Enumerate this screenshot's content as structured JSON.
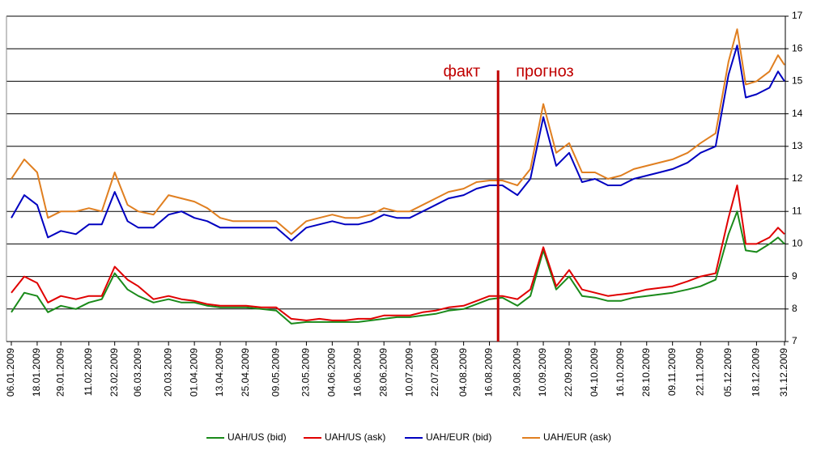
{
  "chart_data": {
    "type": "line",
    "x": [
      "06.01.2009",
      "12.01.2009",
      "18.01.2009",
      "23.01.2009",
      "29.01.2009",
      "05.02.2009",
      "11.02.2009",
      "17.02.2009",
      "23.02.2009",
      "01.03.2009",
      "06.03.2009",
      "13.03.2009",
      "20.03.2009",
      "26.03.2009",
      "01.04.2009",
      "07.04.2009",
      "13.04.2009",
      "19.04.2009",
      "25.04.2009",
      "02.05.2009",
      "09.05.2009",
      "16.05.2009",
      "23.05.2009",
      "29.05.2009",
      "04.06.2009",
      "10.06.2009",
      "16.06.2009",
      "22.06.2009",
      "28.06.2009",
      "04.07.2009",
      "10.07.2009",
      "16.07.2009",
      "22.07.2009",
      "28.07.2009",
      "04.08.2009",
      "10.08.2009",
      "16.08.2009",
      "22.08.2009",
      "29.08.2009",
      "04.09.2009",
      "10.09.2009",
      "16.09.2009",
      "22.09.2009",
      "28.09.2009",
      "04.10.2009",
      "10.10.2009",
      "16.10.2009",
      "22.10.2009",
      "28.10.2009",
      "03.11.2009",
      "09.11.2009",
      "16.11.2009",
      "22.11.2009",
      "29.11.2009",
      "05.12.2009",
      "09.12.2009",
      "13.12.2009",
      "18.12.2009",
      "24.12.2009",
      "28.12.2009",
      "31.12.2009"
    ],
    "series": [
      {
        "name": "UAH/US (bid)",
        "color": "#1a8a1a",
        "values": [
          7.9,
          8.5,
          8.4,
          7.9,
          8.1,
          8.0,
          8.2,
          8.3,
          9.1,
          8.6,
          8.4,
          8.2,
          8.3,
          8.2,
          8.2,
          8.1,
          8.05,
          8.05,
          8.05,
          8.0,
          7.95,
          7.55,
          7.6,
          7.6,
          7.6,
          7.6,
          7.6,
          7.65,
          7.7,
          7.75,
          7.75,
          7.8,
          7.85,
          7.95,
          8.0,
          8.15,
          8.3,
          8.35,
          8.1,
          8.4,
          9.8,
          8.6,
          9.0,
          8.4,
          8.35,
          8.25,
          8.25,
          8.35,
          8.4,
          8.45,
          8.5,
          8.6,
          8.7,
          8.9,
          10.3,
          11.0,
          9.8,
          9.75,
          10.0,
          10.2,
          10.0
        ]
      },
      {
        "name": "UAH/US (ask)",
        "color": "#e00000",
        "values": [
          8.5,
          9.0,
          8.8,
          8.2,
          8.4,
          8.3,
          8.4,
          8.4,
          9.3,
          8.9,
          8.7,
          8.3,
          8.4,
          8.3,
          8.25,
          8.15,
          8.1,
          8.1,
          8.1,
          8.05,
          8.05,
          7.7,
          7.65,
          7.7,
          7.65,
          7.65,
          7.7,
          7.7,
          7.8,
          7.8,
          7.8,
          7.9,
          7.95,
          8.05,
          8.1,
          8.25,
          8.4,
          8.4,
          8.3,
          8.6,
          9.9,
          8.7,
          9.2,
          8.6,
          8.5,
          8.4,
          8.45,
          8.5,
          8.6,
          8.65,
          8.7,
          8.85,
          9.0,
          9.1,
          10.8,
          11.8,
          10.0,
          10.0,
          10.2,
          10.5,
          10.3
        ]
      },
      {
        "name": "UAH/EUR (bid)",
        "color": "#0000c0",
        "values": [
          10.8,
          11.5,
          11.2,
          10.2,
          10.4,
          10.3,
          10.6,
          10.6,
          11.6,
          10.7,
          10.5,
          10.5,
          10.9,
          11.0,
          10.8,
          10.7,
          10.5,
          10.5,
          10.5,
          10.5,
          10.5,
          10.1,
          10.5,
          10.6,
          10.7,
          10.6,
          10.6,
          10.7,
          10.9,
          10.8,
          10.8,
          11.0,
          11.2,
          11.4,
          11.5,
          11.7,
          11.8,
          11.8,
          11.5,
          12.0,
          13.9,
          12.4,
          12.8,
          11.9,
          12.0,
          11.8,
          11.8,
          12.0,
          12.1,
          12.2,
          12.3,
          12.5,
          12.8,
          13.0,
          15.2,
          16.1,
          14.5,
          14.6,
          14.8,
          15.3,
          15.0
        ]
      },
      {
        "name": "UAH/EUR (ask)",
        "color": "#e07f20",
        "values": [
          12.0,
          12.6,
          12.2,
          10.8,
          11.0,
          11.0,
          11.1,
          11.0,
          12.2,
          11.2,
          11.0,
          10.9,
          11.5,
          11.4,
          11.3,
          11.1,
          10.8,
          10.7,
          10.7,
          10.7,
          10.7,
          10.3,
          10.7,
          10.8,
          10.9,
          10.8,
          10.8,
          10.9,
          11.1,
          11.0,
          11.0,
          11.2,
          11.4,
          11.6,
          11.7,
          11.9,
          11.95,
          11.95,
          11.8,
          12.3,
          14.3,
          12.8,
          13.1,
          12.2,
          12.2,
          12.0,
          12.1,
          12.3,
          12.4,
          12.5,
          12.6,
          12.8,
          13.1,
          13.4,
          15.6,
          16.6,
          14.9,
          15.0,
          15.3,
          15.8,
          15.5
        ]
      }
    ],
    "xticks": [
      "06.01.2009",
      "18.01.2009",
      "29.01.2009",
      "11.02.2009",
      "23.02.2009",
      "06.03.2009",
      "20.03.2009",
      "01.04.2009",
      "13.04.2009",
      "25.04.2009",
      "09.05.2009",
      "23.05.2009",
      "04.06.2009",
      "16.06.2009",
      "28.06.2009",
      "10.07.2009",
      "22.07.2009",
      "04.08.2009",
      "16.08.2009",
      "29.08.2009",
      "10.09.2009",
      "22.09.2009",
      "04.10.2009",
      "16.10.2009",
      "28.10.2009",
      "09.11.2009",
      "22.11.2009",
      "05.12.2009",
      "18.12.2009",
      "31.12.2009"
    ],
    "xlim": [
      "06.01.2009",
      "31.12.2009"
    ],
    "ylim": [
      7,
      17
    ],
    "yticks": [
      7,
      8,
      9,
      10,
      11,
      12,
      13,
      14,
      15,
      16,
      17
    ],
    "grid": true,
    "divider": {
      "x": "20.08.2009",
      "left_label": "факт",
      "right_label": "прогноз"
    }
  }
}
